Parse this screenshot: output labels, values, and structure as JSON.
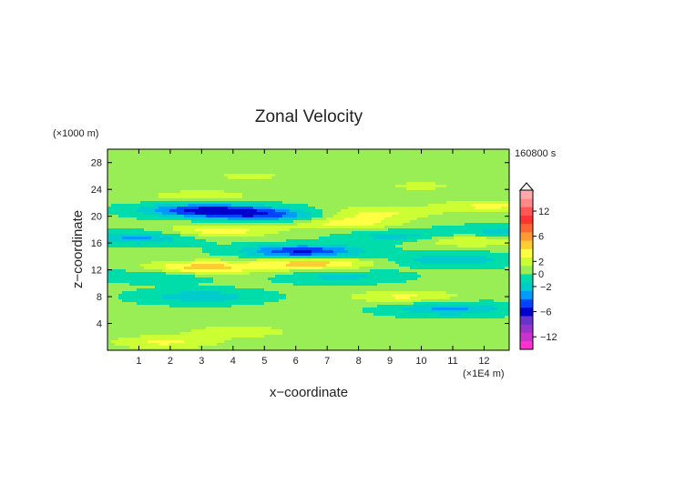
{
  "chart_data": {
    "type": "heatmap",
    "title": "Zonal Velocity",
    "xlabel": "x−coordinate",
    "ylabel": "z−coordinate",
    "x_unit": "(×1E4 m)",
    "y_unit": "(×1000 m)",
    "time_label": "160800 s",
    "xlim": [
      0,
      12.8
    ],
    "ylim": [
      0,
      30
    ],
    "x_ticks": [
      "1",
      "2",
      "3",
      "4",
      "5",
      "6",
      "7",
      "8",
      "9",
      "10",
      "11",
      "12"
    ],
    "y_ticks": [
      "4",
      "8",
      "12",
      "16",
      "20",
      "24",
      "28"
    ],
    "colorbar": {
      "tick_labels": [
        "12",
        "6",
        "2",
        "0",
        "−2",
        "−6",
        "−12"
      ],
      "tick_values": [
        12,
        6,
        2,
        0,
        -2,
        -6,
        -12
      ],
      "levels": [
        -14,
        -12,
        -10,
        -8,
        -6,
        -4,
        -3,
        -2,
        -1,
        0,
        1,
        2,
        3,
        4,
        6,
        8,
        10,
        12,
        14
      ],
      "colors": [
        "#ff33cc",
        "#cc33cc",
        "#9933cc",
        "#6633cc",
        "#0000cc",
        "#0044ff",
        "#0099ff",
        "#00cccc",
        "#00ddaa",
        "#99ee55",
        "#ccff33",
        "#ffff44",
        "#ffcc33",
        "#ff9933",
        "#ff6633",
        "#ff3333",
        "#ff5555",
        "#ff8888",
        "#ffaaaa"
      ]
    },
    "features": [
      {
        "x": 6.2,
        "z": 14.7,
        "value": -4.5
      },
      {
        "x": 2.8,
        "z": 21.0,
        "value": -3.0
      },
      {
        "x": 4.0,
        "z": 20.6,
        "value": -3.0
      },
      {
        "x": 5.5,
        "z": 20.0,
        "value": -2.5
      },
      {
        "x": 1.0,
        "z": 16.8,
        "value": -2.5
      },
      {
        "x": 3.0,
        "z": 8.0,
        "value": -2.0
      },
      {
        "x": 10.9,
        "z": 6.2,
        "value": -2.5
      },
      {
        "x": 12.7,
        "z": 17.5,
        "value": -2.0
      },
      {
        "x": 9.5,
        "z": 17.0,
        "value": -2.0
      },
      {
        "x": 11.0,
        "z": 13.5,
        "value": -2.0
      },
      {
        "x": 1.6,
        "z": 11.2,
        "value": -1.5
      },
      {
        "x": 7.4,
        "z": 11.0,
        "value": -1.5
      },
      {
        "x": 3.0,
        "z": 12.3,
        "value": 3.5
      },
      {
        "x": 6.5,
        "z": 13.0,
        "value": 3.5
      },
      {
        "x": 3.5,
        "z": 17.8,
        "value": 2.5
      },
      {
        "x": 7.5,
        "z": 19.0,
        "value": 2.5
      },
      {
        "x": 8.5,
        "z": 20.5,
        "value": 2.0
      },
      {
        "x": 11.5,
        "z": 16.5,
        "value": 2.5
      },
      {
        "x": 12.2,
        "z": 21.5,
        "value": 2.0
      },
      {
        "x": 9.5,
        "z": 8.0,
        "value": 2.0
      },
      {
        "x": 1.8,
        "z": 1.2,
        "value": 2.0
      },
      {
        "x": 4.2,
        "z": 2.8,
        "value": 1.5
      },
      {
        "x": 3.0,
        "z": 23.0,
        "value": 1.5
      },
      {
        "x": 4.5,
        "z": 26.0,
        "value": 1.0
      },
      {
        "x": 10.0,
        "z": 24.5,
        "value": 1.0
      }
    ]
  }
}
